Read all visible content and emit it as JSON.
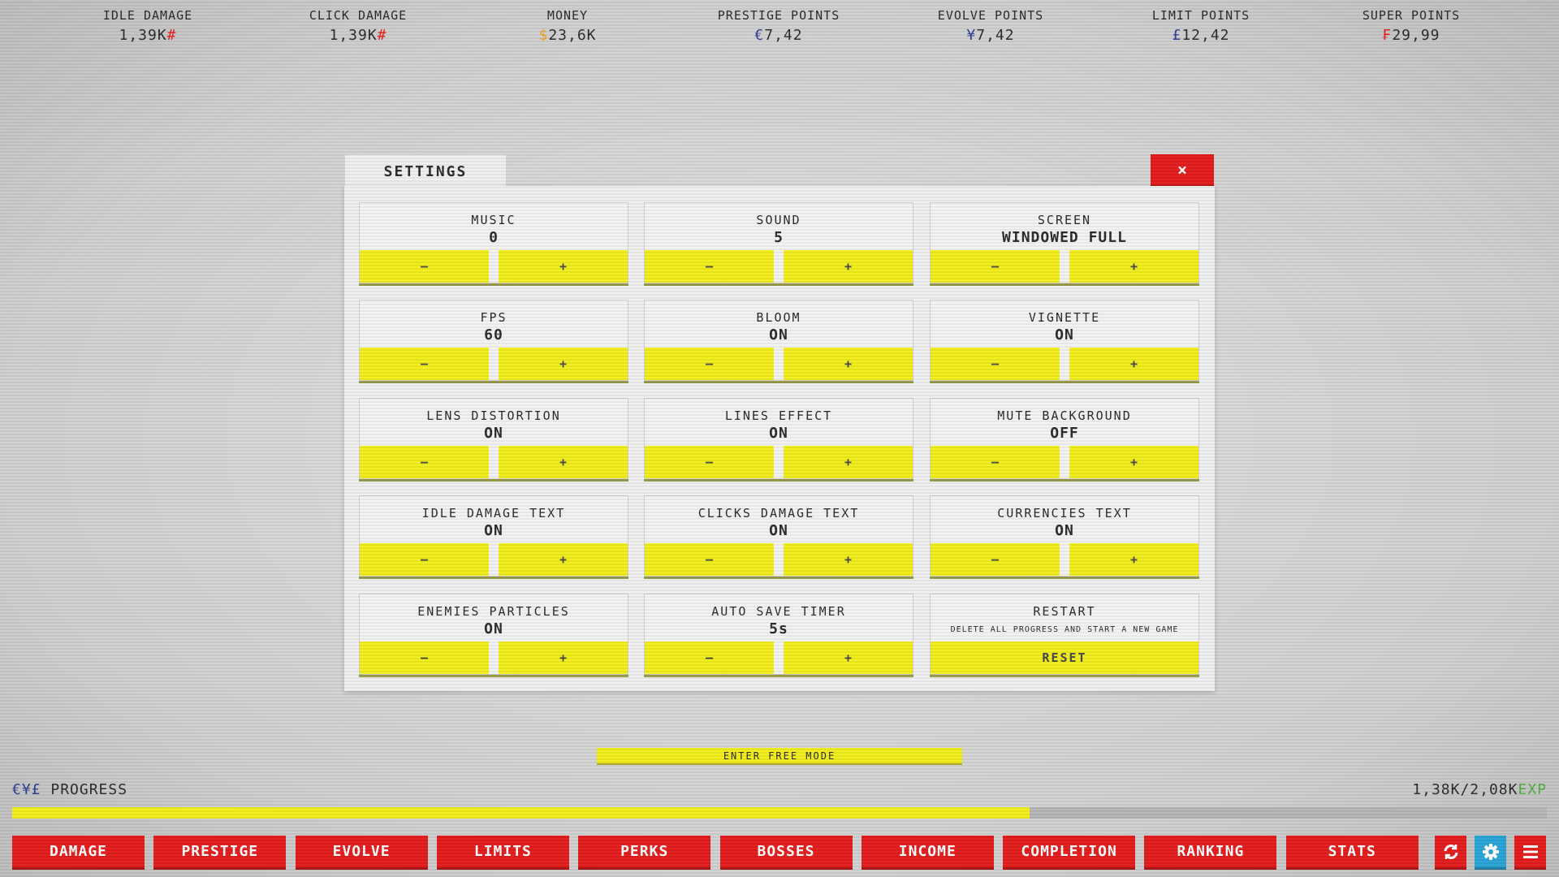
{
  "colors": {
    "accent_yellow": "#f1ee1a",
    "accent_red": "#e31b1b",
    "settings_blue": "#29a3d6",
    "currency_blue": "#2d3d8f",
    "money_orange": "#f0a020",
    "exp_green": "#4caf3a"
  },
  "stats": [
    {
      "label": "IDLE DAMAGE",
      "value": "1,39K",
      "symbol": "#",
      "symbol_color": "#e31b1b",
      "symbol_after": true
    },
    {
      "label": "CLICK DAMAGE",
      "value": "1,39K",
      "symbol": "#",
      "symbol_color": "#e31b1b",
      "symbol_after": true
    },
    {
      "label": "MONEY",
      "value": "23,6K",
      "symbol": "$",
      "symbol_color": "#f0a020"
    },
    {
      "label": "PRESTIGE POINTS",
      "value": "7,42",
      "symbol": "€",
      "symbol_color": "#2d3d8f"
    },
    {
      "label": "EVOLVE POINTS",
      "value": "7,42",
      "symbol": "¥",
      "symbol_color": "#2d3d8f"
    },
    {
      "label": "LIMIT POINTS",
      "value": "12,42",
      "symbol": "£",
      "symbol_color": "#2d3d8f"
    },
    {
      "label": "SUPER POINTS",
      "value": "29,99",
      "symbol": "₣",
      "symbol_color": "#e31b1b"
    }
  ],
  "settings": {
    "title": "SETTINGS",
    "close": "×",
    "minus": "–",
    "plus": "+",
    "cards": [
      {
        "label": "MUSIC",
        "value": "0"
      },
      {
        "label": "SOUND",
        "value": "5"
      },
      {
        "label": "SCREEN",
        "value": "WINDOWED FULL"
      },
      {
        "label": "FPS",
        "value": "60"
      },
      {
        "label": "BLOOM",
        "value": "ON"
      },
      {
        "label": "VIGNETTE",
        "value": "ON"
      },
      {
        "label": "LENS DISTORTION",
        "value": "ON"
      },
      {
        "label": "LINES EFFECT",
        "value": "ON"
      },
      {
        "label": "MUTE BACKGROUND",
        "value": "OFF"
      },
      {
        "label": "IDLE DAMAGE TEXT",
        "value": "ON"
      },
      {
        "label": "CLICKS DAMAGE TEXT",
        "value": "ON"
      },
      {
        "label": "CURRENCIES TEXT",
        "value": "ON"
      },
      {
        "label": "ENEMIES PARTICLES",
        "value": "ON"
      },
      {
        "label": "AUTO SAVE TIMER",
        "value": "5s"
      }
    ],
    "restart": {
      "label": "RESTART",
      "description": "DELETE ALL PROGRESS AND START A NEW GAME",
      "button": "RESET"
    }
  },
  "free_mode": "ENTER FREE MODE",
  "progress": {
    "symbols": "€¥£",
    "label": "PROGRESS",
    "current": "1,38K",
    "max": "2,08K",
    "unit": "EXP",
    "fraction": 0.663
  },
  "nav": [
    "DAMAGE",
    "PRESTIGE",
    "EVOLVE",
    "LIMITS",
    "PERKS",
    "BOSSES",
    "INCOME",
    "COMPLETION",
    "RANKING",
    "STATS"
  ],
  "icons": [
    "refresh-icon",
    "gear-icon",
    "menu-icon"
  ]
}
